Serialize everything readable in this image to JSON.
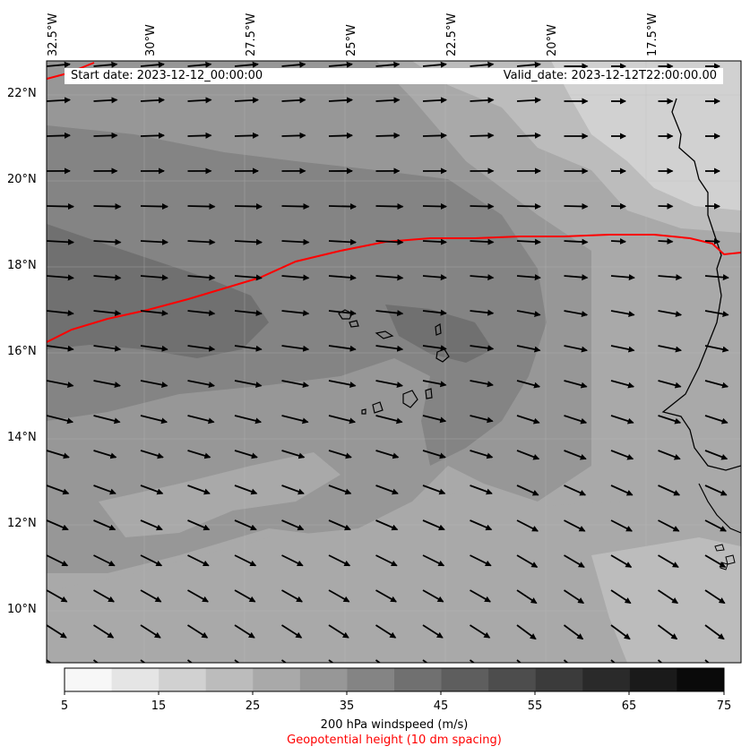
{
  "header": {
    "start_date": "Start date: 2023-12-12_00:00:00",
    "valid_date": "Valid_date: 2023-12-12T22:00:00.00"
  },
  "axes": {
    "lon_labels": [
      "32.5°W",
      "30°W",
      "27.5°W",
      "25°W",
      "22.5°W",
      "20°W",
      "17.5°W"
    ],
    "lat_labels": [
      "22°N",
      "20°N",
      "18°N",
      "16°N",
      "14°N",
      "12°N",
      "10°N"
    ]
  },
  "colorbar": {
    "ticks": [
      "5",
      "15",
      "25",
      "35",
      "45",
      "55",
      "65",
      "75"
    ],
    "label": "200 hPa windspeed (m/s)",
    "colors": [
      "#f7f7f7",
      "#e5e5e5",
      "#d1d1d1",
      "#bcbcbc",
      "#a9a9a9",
      "#979797",
      "#848484",
      "#707070",
      "#5e5e5e",
      "#4d4d4d",
      "#3b3b3b",
      "#2a2a2a",
      "#1a1a1a",
      "#0a0a0a"
    ]
  },
  "geopotential_label": "Geopotential height (10 dm spacing)",
  "styles": {
    "contour_color": "#ff0000",
    "coastline_color": "#000000",
    "arrow_color": "#000000"
  }
}
